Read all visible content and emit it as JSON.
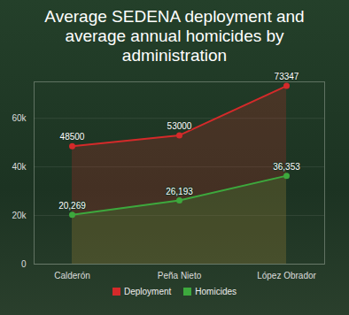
{
  "chart_data": {
    "type": "line",
    "title": "Average SEDENA deployment and average annual homicides by administration",
    "categories": [
      "Calderón",
      "Peña Nieto",
      "López Obrador"
    ],
    "series": [
      {
        "name": "Deployment",
        "color": "#d42a2a",
        "values": [
          48500,
          53000,
          73347
        ],
        "marker": "circle"
      },
      {
        "name": "Homicides",
        "color": "#3da83d",
        "values": [
          20269,
          26193,
          36353
        ],
        "value_labels": [
          "20,269",
          "26,193",
          "36,353"
        ],
        "marker": "circle"
      }
    ],
    "ylim": [
      0,
      75000
    ],
    "yticks": [
      0,
      {
        "value": 20000,
        "label": "20k"
      },
      {
        "value": 40000,
        "label": "40k"
      },
      {
        "value": 60000,
        "label": "60k"
      }
    ],
    "grid": true,
    "data_labels": true,
    "legend": "bottom"
  }
}
